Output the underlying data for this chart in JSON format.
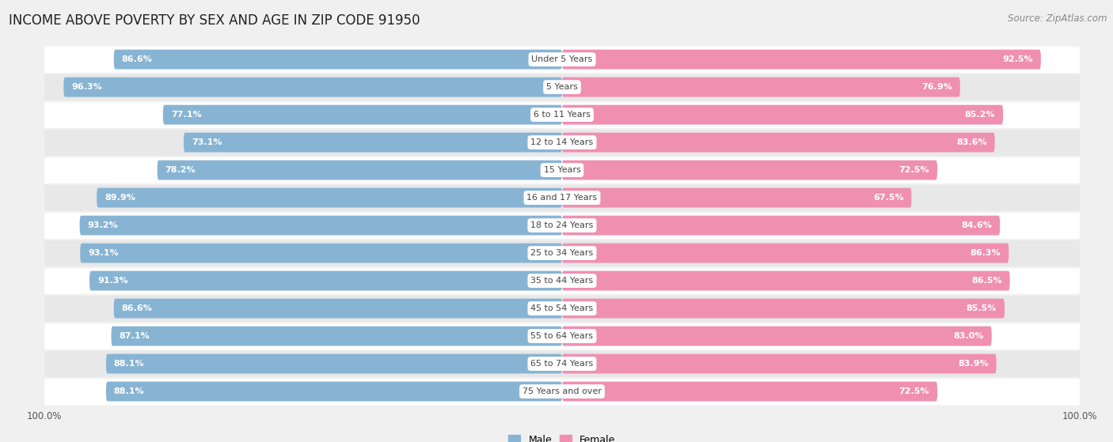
{
  "title": "INCOME ABOVE POVERTY BY SEX AND AGE IN ZIP CODE 91950",
  "source": "Source: ZipAtlas.com",
  "categories": [
    "Under 5 Years",
    "5 Years",
    "6 to 11 Years",
    "12 to 14 Years",
    "15 Years",
    "16 and 17 Years",
    "18 to 24 Years",
    "25 to 34 Years",
    "35 to 44 Years",
    "45 to 54 Years",
    "55 to 64 Years",
    "65 to 74 Years",
    "75 Years and over"
  ],
  "male_values": [
    86.6,
    96.3,
    77.1,
    73.1,
    78.2,
    89.9,
    93.2,
    93.1,
    91.3,
    86.6,
    87.1,
    88.1,
    88.1
  ],
  "female_values": [
    92.5,
    76.9,
    85.2,
    83.6,
    72.5,
    67.5,
    84.6,
    86.3,
    86.5,
    85.5,
    83.0,
    83.9,
    72.5
  ],
  "male_color": "#88b4d4",
  "female_color": "#f090b0",
  "male_label": "Male",
  "female_label": "Female",
  "background_color": "#f0f0f0",
  "row_colors": [
    "#ffffff",
    "#e8e8e8"
  ],
  "title_fontsize": 12,
  "source_fontsize": 8.5,
  "label_fontsize": 8,
  "value_fontsize": 8,
  "axis_max": 100.0,
  "center_label_color": "#444444",
  "value_text_color": "#ffffff"
}
